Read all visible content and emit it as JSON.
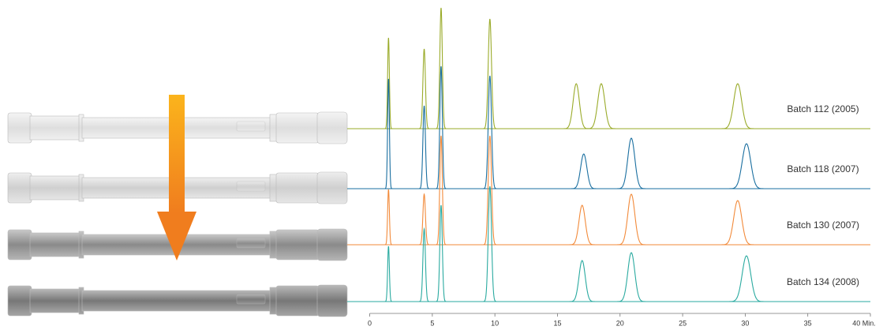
{
  "chart_data": {
    "type": "chromatogram",
    "xlim": [
      -1.8,
      40
    ],
    "xticks": [
      0,
      5,
      10,
      15,
      20,
      25,
      30,
      35,
      {
        "value": 40,
        "label": "40 Min."
      }
    ],
    "series": [
      {
        "name": "Batch 112 (2005)",
        "color": "#9aab2a",
        "times": [
          1.5,
          4.35,
          5.7,
          9.6,
          16.5,
          18.5,
          29.4
        ],
        "heights": [
          115,
          101,
          153,
          139,
          57,
          57,
          57
        ],
        "widths": [
          0.07,
          0.1,
          0.1,
          0.13,
          0.25,
          0.28,
          0.32
        ]
      },
      {
        "name": "Batch 118 (2007)",
        "color": "#1a6fa0",
        "times": [
          1.5,
          4.35,
          5.7,
          9.6,
          17.1,
          20.9,
          30.1
        ],
        "heights": [
          139,
          105,
          155,
          143,
          44,
          64,
          57
        ],
        "widths": [
          0.07,
          0.1,
          0.1,
          0.13,
          0.25,
          0.28,
          0.34
        ]
      },
      {
        "name": "Batch 130 (2007)",
        "color": "#f28a3a",
        "times": [
          1.5,
          4.35,
          5.7,
          9.6,
          16.97,
          20.9,
          29.4
        ],
        "heights": [
          70,
          64,
          138,
          138,
          50,
          64,
          56
        ],
        "widths": [
          0.07,
          0.1,
          0.1,
          0.13,
          0.25,
          0.28,
          0.32
        ]
      },
      {
        "name": "Batch 134 (2008)",
        "color": "#2aaaa0",
        "times": [
          1.5,
          4.35,
          5.7,
          9.6,
          16.97,
          20.9,
          30.1
        ],
        "heights": [
          70,
          92,
          122,
          146,
          52,
          62,
          58
        ],
        "widths": [
          0.07,
          0.1,
          0.1,
          0.13,
          0.25,
          0.28,
          0.34
        ]
      }
    ]
  }
}
